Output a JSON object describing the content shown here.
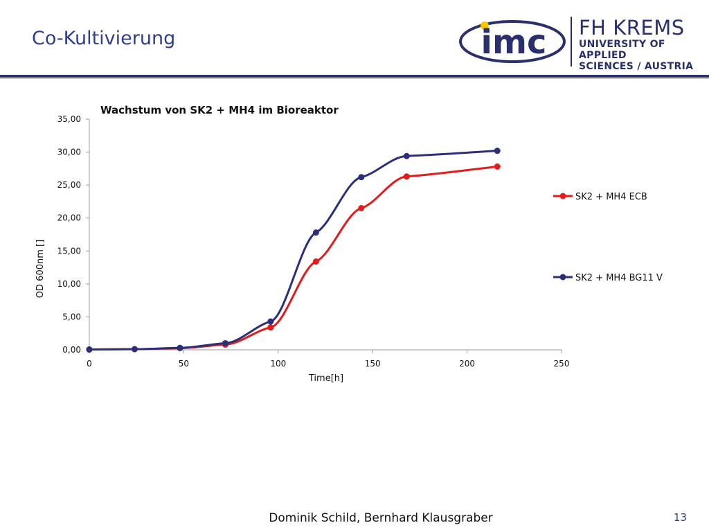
{
  "slide": {
    "title": "Co-Kultivierung",
    "footer": "Dominik Schild, Bernhard Klausgraber",
    "page_number": "13"
  },
  "logos": {
    "imc_text": "imc",
    "fh_line1": "FH KREMS",
    "fh_line2": "UNIVERSITY OF APPLIED",
    "fh_line3": "SCIENCES / AUSTRIA",
    "navy": "#2a2f6e",
    "yellow": "#f5c800"
  },
  "chart_data": {
    "type": "line",
    "title": "Wachstum von  SK2 + MH4 im Bioreaktor",
    "xlabel": "Time[h]",
    "ylabel": "OD 600nm []",
    "xlim": [
      0,
      250
    ],
    "ylim": [
      0,
      35
    ],
    "x_ticks": [
      0,
      50,
      100,
      150,
      200,
      250
    ],
    "y_ticks": [
      "0,00",
      "5,00",
      "10,00",
      "15,00",
      "20,00",
      "25,00",
      "30,00",
      "35,00"
    ],
    "grid": false,
    "smooth": true,
    "legend_position": "right",
    "series": [
      {
        "name": "SK2 + MH4 ECB",
        "color": "#e31b1b",
        "points": [
          [
            0,
            0.05
          ],
          [
            24,
            0.1
          ],
          [
            48,
            0.25
          ],
          [
            72,
            0.8
          ],
          [
            96,
            3.4
          ],
          [
            120,
            13.4
          ],
          [
            144,
            21.5
          ],
          [
            168,
            26.3
          ],
          [
            216,
            27.8
          ]
        ]
      },
      {
        "name": "SK2 + MH4 BG11 V",
        "color": "#2b2f7a",
        "points": [
          [
            0,
            0.05
          ],
          [
            24,
            0.1
          ],
          [
            48,
            0.3
          ],
          [
            72,
            1.0
          ],
          [
            96,
            4.3
          ],
          [
            120,
            17.8
          ],
          [
            144,
            26.2
          ],
          [
            168,
            29.4
          ],
          [
            216,
            30.2
          ]
        ]
      }
    ]
  }
}
